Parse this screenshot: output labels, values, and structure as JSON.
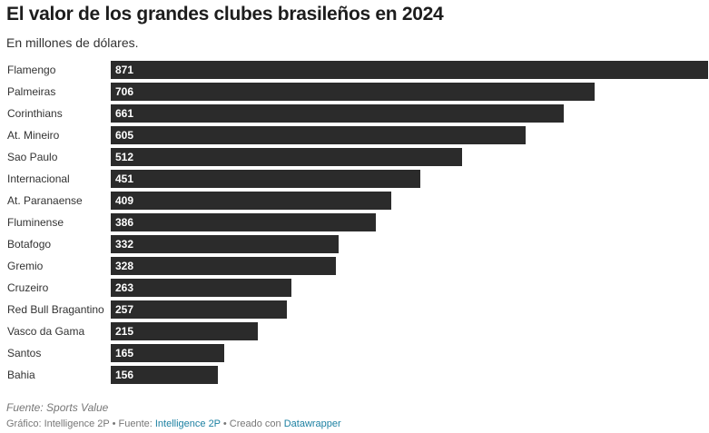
{
  "header": {
    "title": "El valor de los grandes clubes brasileños en 2024",
    "subtitle": "En millones de dólares."
  },
  "footer": {
    "source": "Fuente: Sports Value",
    "credit_prefix": "Gráfico: Intelligence 2P • Fuente: ",
    "credit_source_link": "Intelligence 2P",
    "credit_middle": " • Creado con ",
    "credit_tool_link": "Datawrapper"
  },
  "colors": {
    "bar": "#2b2b2b",
    "value_text": "#ffffff",
    "label_text": "#333333",
    "link": "#1d81a2"
  },
  "chart_data": {
    "type": "bar",
    "orientation": "horizontal",
    "categories": [
      "Flamengo",
      "Palmeiras",
      "Corinthians",
      "At. Mineiro",
      "Sao Paulo",
      "Internacional",
      "At. Paranaense",
      "Fluminense",
      "Botafogo",
      "Gremio",
      "Cruzeiro",
      "Red Bull Bragantino",
      "Vasco da Gama",
      "Santos",
      "Bahia"
    ],
    "values": [
      871,
      706,
      661,
      605,
      512,
      451,
      409,
      386,
      332,
      328,
      263,
      257,
      215,
      165,
      156
    ],
    "value_labels": [
      "871",
      "706",
      "661",
      "605",
      "512",
      "451",
      "409",
      "386",
      "332",
      "328",
      "263",
      "257",
      "215",
      "165",
      "156"
    ],
    "title": "El valor de los grandes clubes brasileños en 2024",
    "subtitle": "En millones de dólares.",
    "xlim": [
      0,
      871
    ],
    "grid": false,
    "legend": "none"
  }
}
